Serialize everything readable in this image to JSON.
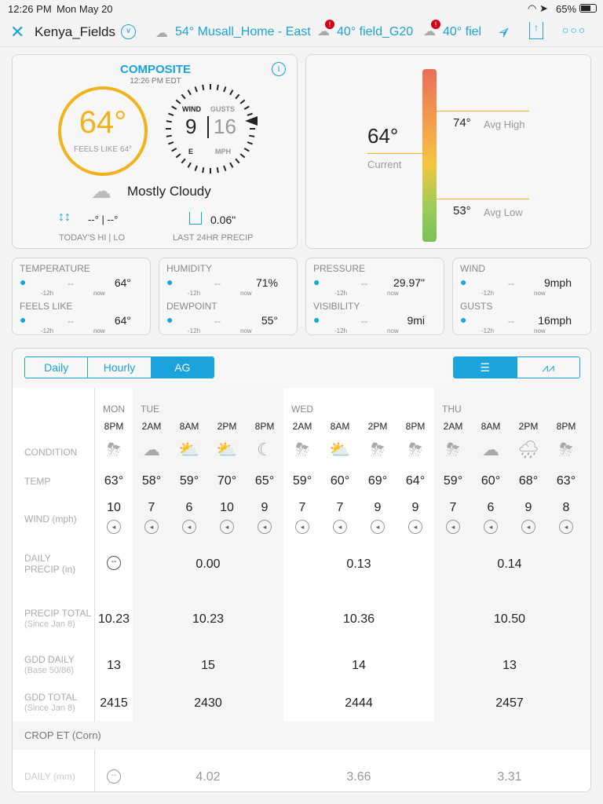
{
  "status": {
    "time": "12:26 PM",
    "date": "Mon May 20",
    "battery": "65%"
  },
  "nav": {
    "title": "Kenya_Fields",
    "stations": [
      {
        "temp": "54°",
        "name": "Musall_Home - East",
        "icon": "cloud-icon"
      },
      {
        "temp": "40°",
        "name": "field_G20",
        "icon": "rain-alert-icon"
      },
      {
        "temp": "40°",
        "name": "fiel",
        "icon": "rain-alert-icon"
      }
    ]
  },
  "composite": {
    "title": "COMPOSITE",
    "time": "12:26 PM EDT",
    "temp": "64°",
    "feels": "FEELS LIKE 64°",
    "wind_label": "WIND",
    "gusts_label": "GUSTS",
    "wind": "9",
    "gusts": "16",
    "dir": "E",
    "unit": "MPH",
    "condition": "Mostly Cloudy",
    "hilo": "--° | --°",
    "hilo_label": "TODAY'S HI | LO",
    "precip": "0.06\"",
    "precip_label": "LAST 24HR PRECIP"
  },
  "gauge": {
    "current": "64°",
    "current_label": "Current",
    "high": "74°",
    "high_label": "Avg High",
    "low": "53°",
    "low_label": "Avg Low"
  },
  "metrics": [
    {
      "a": {
        "label": "TEMPERATURE",
        "prev": "--",
        "now": "64°",
        "icon": "thermometer-icon"
      },
      "b": {
        "label": "FEELS LIKE",
        "prev": "--",
        "now": "64°",
        "icon": "hand-icon"
      }
    },
    {
      "a": {
        "label": "HUMIDITY",
        "prev": "--",
        "now": "71%",
        "icon": "humidity-icon"
      },
      "b": {
        "label": "DEWPOINT",
        "prev": "--",
        "now": "55°",
        "icon": "dewpoint-icon"
      }
    },
    {
      "a": {
        "label": "PRESSURE",
        "prev": "--",
        "now": "29.97\"",
        "icon": "pressure-icon"
      },
      "b": {
        "label": "VISIBILITY",
        "prev": "--",
        "now": "9mi",
        "icon": "eye-icon"
      }
    },
    {
      "a": {
        "label": "WIND",
        "prev": "--",
        "now": "9mph",
        "icon": "wind-icon"
      },
      "b": {
        "label": "GUSTS",
        "prev": "--",
        "now": "16mph",
        "icon": "flag-icon"
      }
    }
  ],
  "ticks": {
    "prev": "-12h",
    "now": "now"
  },
  "tabs": [
    "Daily",
    "Hourly",
    "AG"
  ],
  "rows": {
    "condition": "CONDITION",
    "temp": "TEMP",
    "wind": "WIND (mph)",
    "daily_precip": "DAILY PRECIP (in)",
    "precip_total": "PRECIP TOTAL",
    "precip_total_sub": "(Since Jan 8)",
    "gdd_daily": "GDD DAILY",
    "gdd_daily_sub": "(Base 50/86)",
    "gdd_total": "GDD TOTAL",
    "gdd_total_sub": "(Since Jan 8)",
    "crop": "CROP ET (Corn)",
    "daily_mm": "DAILY (mm)"
  },
  "days": [
    {
      "day": "MON",
      "hours": [
        {
          "t": "8PM",
          "cond": "storm-night",
          "temp": "63°",
          "wind": "10"
        }
      ],
      "precip": "",
      "precip_total": "10.23",
      "gdd": "13",
      "gdd_total": "2415",
      "et": ""
    },
    {
      "day": "TUE",
      "hours": [
        {
          "t": "2AM",
          "cond": "cloudy",
          "temp": "58°",
          "wind": "7"
        },
        {
          "t": "8AM",
          "cond": "partly-sunny",
          "temp": "59°",
          "wind": "6"
        },
        {
          "t": "2PM",
          "cond": "mostly-cloudy-day",
          "temp": "70°",
          "wind": "10"
        },
        {
          "t": "8PM",
          "cond": "night",
          "temp": "65°",
          "wind": "9"
        }
      ],
      "precip": "0.00",
      "precip_total": "10.23",
      "gdd": "15",
      "gdd_total": "2430",
      "et": "4.02"
    },
    {
      "day": "WED",
      "hours": [
        {
          "t": "2AM",
          "cond": "storm-night",
          "temp": "59°",
          "wind": "7"
        },
        {
          "t": "8AM",
          "cond": "mostly-cloudy-day",
          "temp": "60°",
          "wind": "7"
        },
        {
          "t": "2PM",
          "cond": "storm-day",
          "temp": "69°",
          "wind": "9"
        },
        {
          "t": "8PM",
          "cond": "storm-night",
          "temp": "64°",
          "wind": "9"
        }
      ],
      "precip": "0.13",
      "precip_total": "10.36",
      "gdd": "14",
      "gdd_total": "2444",
      "et": "3.66"
    },
    {
      "day": "THU",
      "hours": [
        {
          "t": "2AM",
          "cond": "storm-night",
          "temp": "59°",
          "wind": "7"
        },
        {
          "t": "8AM",
          "cond": "cloudy",
          "temp": "60°",
          "wind": "6"
        },
        {
          "t": "2PM",
          "cond": "rain",
          "temp": "68°",
          "wind": "9"
        },
        {
          "t": "8PM",
          "cond": "storm-night",
          "temp": "63°",
          "wind": "8"
        }
      ],
      "precip": "0.14",
      "precip_total": "10.50",
      "gdd": "13",
      "gdd_total": "2457",
      "et": "3.31"
    }
  ],
  "colors": {
    "accent": "#1aa3dd",
    "temp": "#f2b21c"
  }
}
